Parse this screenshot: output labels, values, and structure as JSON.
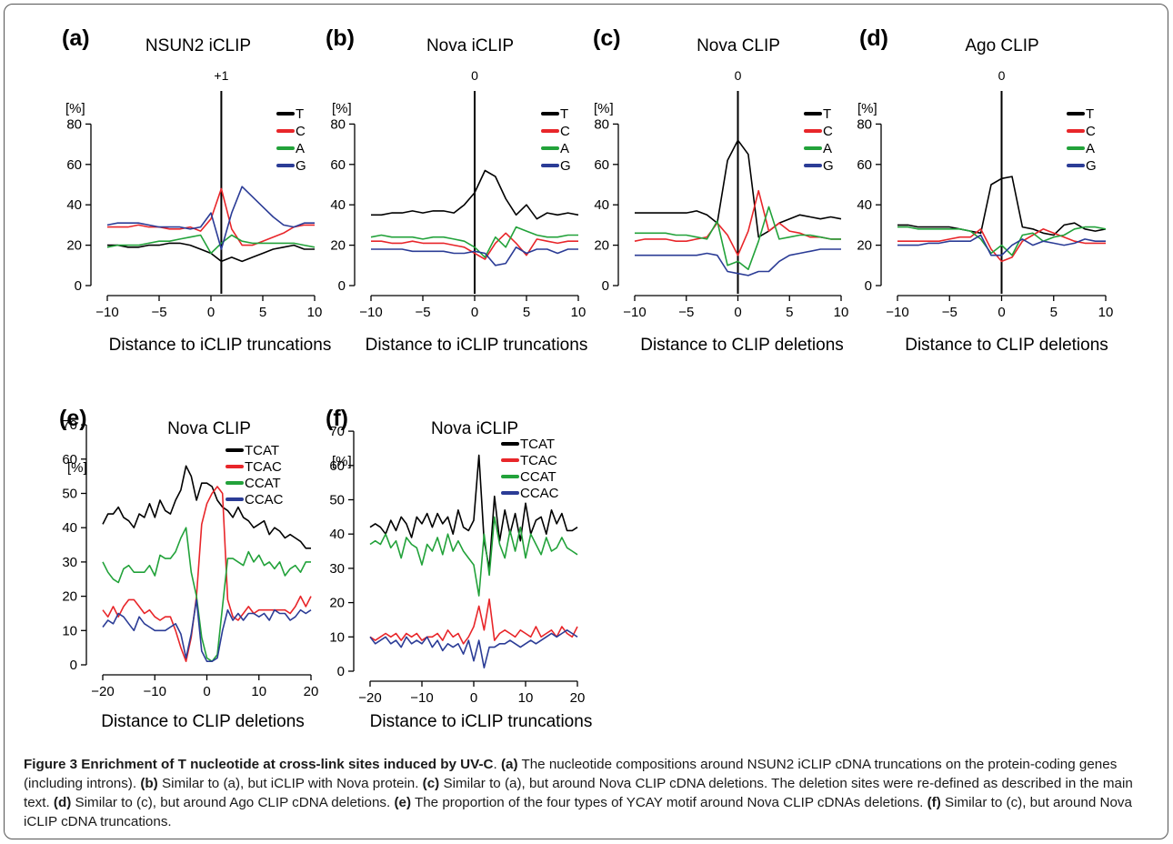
{
  "colors": {
    "T": "#000000",
    "C": "#e8262a",
    "A": "#22a23a",
    "G": "#2b3c96"
  },
  "caption": {
    "title": "Figure 3 Enrichment of T nucleotide at cross-link sites induced by UV-C",
    "title_end": ". ",
    "parts": [
      {
        "ref": "(a)",
        "text": " The nucleotide compositions around NSUN2 iCLIP cDNA truncations on the protein-coding genes (including introns). "
      },
      {
        "ref": "(b)",
        "text": " Similar to (a), but iCLIP with Nova protein. "
      },
      {
        "ref": "(c)",
        "text": " Similar to (a), but around Nova CLIP cDNA deletions. The deletion sites were re-defined as described in the main text. "
      },
      {
        "ref": "(d)",
        "text": " Similar to (c), but around Ago CLIP cDNA deletions. "
      },
      {
        "ref": "(e)",
        "text": " The proportion of the four types of YCAY motif around Nova CLIP cDNAs deletions. "
      },
      {
        "ref": "(f)",
        "text": " Similar to (c), but around Nova iCLIP cDNA truncations."
      }
    ]
  },
  "chart_data": [
    {
      "panel": "(a)",
      "type": "line",
      "title": "NSUN2 iCLIP",
      "ylabel": "[%]",
      "xlabel": "Distance to iCLIP truncations",
      "vline": 1,
      "vline_label": "+1",
      "ylim": [
        0,
        90
      ],
      "yticks": [
        0,
        20,
        40,
        60,
        80
      ],
      "xlim": [
        -10,
        10
      ],
      "xticks": [
        -10,
        -5,
        0,
        5,
        10
      ],
      "x": [
        -10,
        -9,
        -8,
        -7,
        -6,
        -5,
        -4,
        -3,
        -2,
        -1,
        0,
        1,
        2,
        3,
        4,
        5,
        6,
        7,
        8,
        9,
        10
      ],
      "series": [
        {
          "name": "T",
          "values": [
            20,
            20,
            19,
            19,
            20,
            20,
            21,
            21,
            20,
            18,
            16,
            12,
            14,
            12,
            14,
            16,
            18,
            19,
            20,
            18,
            18
          ]
        },
        {
          "name": "C",
          "values": [
            29,
            29,
            29,
            30,
            29,
            29,
            28,
            28,
            29,
            27,
            33,
            48,
            28,
            20,
            20,
            22,
            24,
            26,
            29,
            30,
            30
          ]
        },
        {
          "name": "A",
          "values": [
            19,
            20,
            20,
            20,
            21,
            22,
            22,
            23,
            24,
            25,
            16,
            21,
            25,
            22,
            21,
            21,
            21,
            21,
            21,
            20,
            19
          ]
        },
        {
          "name": "G",
          "values": [
            30,
            31,
            31,
            31,
            30,
            29,
            29,
            29,
            28,
            29,
            36,
            18,
            36,
            49,
            44,
            39,
            34,
            30,
            29,
            31,
            31
          ]
        }
      ]
    },
    {
      "panel": "(b)",
      "type": "line",
      "title": "Nova iCLIP",
      "ylabel": "[%]",
      "xlabel": "Distance to iCLIP truncations",
      "vline": 0,
      "vline_label": "0",
      "ylim": [
        0,
        90
      ],
      "yticks": [
        0,
        20,
        40,
        60,
        80
      ],
      "xlim": [
        -10,
        10
      ],
      "xticks": [
        -10,
        -5,
        0,
        5,
        10
      ],
      "x": [
        -10,
        -9,
        -8,
        -7,
        -6,
        -5,
        -4,
        -3,
        -2,
        -1,
        0,
        1,
        2,
        3,
        4,
        5,
        6,
        7,
        8,
        9,
        10
      ],
      "series": [
        {
          "name": "T",
          "values": [
            35,
            35,
            36,
            36,
            37,
            36,
            37,
            37,
            36,
            40,
            46,
            57,
            54,
            43,
            35,
            40,
            33,
            36,
            35,
            36,
            35
          ]
        },
        {
          "name": "C",
          "values": [
            22,
            22,
            21,
            21,
            22,
            21,
            21,
            21,
            20,
            19,
            16,
            13,
            21,
            26,
            21,
            15,
            23,
            22,
            21,
            22,
            22
          ]
        },
        {
          "name": "A",
          "values": [
            24,
            25,
            24,
            24,
            24,
            23,
            24,
            24,
            23,
            22,
            19,
            14,
            24,
            19,
            29,
            27,
            25,
            24,
            24,
            25,
            25
          ]
        },
        {
          "name": "G",
          "values": [
            18,
            18,
            18,
            18,
            17,
            17,
            17,
            17,
            16,
            16,
            17,
            16,
            10,
            11,
            19,
            16,
            18,
            18,
            16,
            18,
            18
          ]
        }
      ]
    },
    {
      "panel": "(c)",
      "type": "line",
      "title": "Nova CLIP",
      "ylabel": "[%]",
      "xlabel": "Distance to CLIP deletions",
      "vline": 0,
      "vline_label": "0",
      "ylim": [
        0,
        90
      ],
      "yticks": [
        0,
        20,
        40,
        60,
        80
      ],
      "xlim": [
        -10,
        10
      ],
      "xticks": [
        -10,
        -5,
        0,
        5,
        10
      ],
      "x": [
        -10,
        -9,
        -8,
        -7,
        -6,
        -5,
        -4,
        -3,
        -2,
        -1,
        0,
        1,
        2,
        3,
        4,
        5,
        6,
        7,
        8,
        9,
        10
      ],
      "series": [
        {
          "name": "T",
          "values": [
            36,
            36,
            36,
            36,
            36,
            36,
            37,
            35,
            31,
            62,
            72,
            65,
            24,
            27,
            31,
            33,
            35,
            34,
            33,
            34,
            33
          ]
        },
        {
          "name": "C",
          "values": [
            22,
            23,
            23,
            23,
            22,
            22,
            23,
            24,
            31,
            25,
            15,
            27,
            47,
            27,
            31,
            27,
            26,
            24,
            24,
            23,
            23
          ]
        },
        {
          "name": "A",
          "values": [
            26,
            26,
            26,
            26,
            25,
            25,
            24,
            23,
            32,
            10,
            12,
            8,
            22,
            39,
            23,
            24,
            25,
            25,
            24,
            23,
            23
          ]
        },
        {
          "name": "G",
          "values": [
            15,
            15,
            15,
            15,
            15,
            15,
            15,
            16,
            15,
            7,
            6,
            5,
            7,
            7,
            12,
            15,
            16,
            17,
            18,
            18,
            18
          ]
        }
      ]
    },
    {
      "panel": "(d)",
      "type": "line",
      "title": "Ago CLIP",
      "ylabel": "[%]",
      "xlabel": "Distance to CLIP deletions",
      "vline": 0,
      "vline_label": "0",
      "ylim": [
        0,
        90
      ],
      "yticks": [
        0,
        20,
        40,
        60,
        80
      ],
      "xlim": [
        -10,
        10
      ],
      "xticks": [
        -10,
        -5,
        0,
        5,
        10
      ],
      "x": [
        -10,
        -9,
        -8,
        -7,
        -6,
        -5,
        -4,
        -3,
        -2,
        -1,
        0,
        1,
        2,
        3,
        4,
        5,
        6,
        7,
        8,
        9,
        10
      ],
      "series": [
        {
          "name": "T",
          "values": [
            30,
            30,
            29,
            29,
            29,
            29,
            28,
            27,
            26,
            50,
            53,
            54,
            29,
            28,
            26,
            25,
            30,
            31,
            28,
            27,
            28
          ]
        },
        {
          "name": "C",
          "values": [
            22,
            22,
            22,
            22,
            22,
            23,
            24,
            24,
            28,
            18,
            12,
            14,
            22,
            25,
            28,
            26,
            24,
            22,
            21,
            21,
            21
          ]
        },
        {
          "name": "A",
          "values": [
            29,
            29,
            28,
            28,
            28,
            28,
            28,
            27,
            23,
            16,
            20,
            15,
            25,
            26,
            22,
            24,
            25,
            28,
            29,
            29,
            28
          ]
        },
        {
          "name": "G",
          "values": [
            20,
            20,
            20,
            21,
            21,
            22,
            22,
            22,
            25,
            15,
            15,
            20,
            23,
            20,
            22,
            21,
            20,
            21,
            23,
            22,
            22
          ]
        }
      ]
    },
    {
      "panel": "(e)",
      "type": "line",
      "title": "Nova CLIP",
      "ylabel": "[%]",
      "xlabel": "Distance to CLIP deletions",
      "ylim": [
        0,
        70
      ],
      "yticks": [
        0,
        10,
        20,
        30,
        40,
        50,
        60,
        70
      ],
      "xlim": [
        -20,
        20
      ],
      "xticks": [
        -20,
        -10,
        0,
        10,
        20
      ],
      "x": [
        -20,
        -19,
        -18,
        -17,
        -16,
        -15,
        -14,
        -13,
        -12,
        -11,
        -10,
        -9,
        -8,
        -7,
        -6,
        -5,
        -4,
        -3,
        -2,
        -1,
        0,
        1,
        2,
        3,
        4,
        5,
        6,
        7,
        8,
        9,
        10,
        11,
        12,
        13,
        14,
        15,
        16,
        17,
        18,
        19,
        20
      ],
      "series": [
        {
          "name": "TCAT",
          "values": [
            41,
            44,
            44,
            46,
            43,
            42,
            40,
            44,
            43,
            47,
            43,
            48,
            45,
            44,
            48,
            51,
            58,
            55,
            48,
            53,
            53,
            52,
            48,
            46,
            45,
            43,
            46,
            43,
            42,
            40,
            41,
            42,
            38,
            40,
            39,
            37,
            38,
            37,
            36,
            34,
            34
          ]
        },
        {
          "name": "TCAC",
          "values": [
            16,
            14,
            17,
            14,
            17,
            19,
            19,
            17,
            15,
            16,
            14,
            13,
            14,
            14,
            10,
            5,
            1,
            8,
            20,
            41,
            47,
            50,
            52,
            50,
            19,
            14,
            13,
            15,
            17,
            15,
            16,
            16,
            16,
            16,
            16,
            16,
            15,
            17,
            20,
            17,
            20
          ]
        },
        {
          "name": "CCAT",
          "values": [
            30,
            27,
            25,
            24,
            28,
            29,
            27,
            27,
            27,
            29,
            26,
            32,
            31,
            31,
            33,
            37,
            40,
            27,
            20,
            8,
            2,
            1,
            3,
            17,
            31,
            31,
            30,
            29,
            33,
            30,
            32,
            29,
            30,
            28,
            30,
            26,
            28,
            29,
            27,
            30,
            30
          ]
        },
        {
          "name": "CCAC",
          "values": [
            11,
            13,
            12,
            15,
            14,
            12,
            10,
            14,
            12,
            11,
            10,
            10,
            10,
            11,
            12,
            9,
            2,
            9,
            19,
            4,
            1,
            1,
            2,
            10,
            16,
            13,
            15,
            13,
            15,
            15,
            14,
            15,
            13,
            16,
            15,
            15,
            13,
            14,
            16,
            15,
            16
          ]
        }
      ]
    },
    {
      "panel": "(f)",
      "type": "line",
      "title": "Nova iCLIP",
      "ylabel": "[%]",
      "xlabel": "Distance to iCLIP truncations",
      "ylim": [
        0,
        70
      ],
      "yticks": [
        0,
        10,
        20,
        30,
        40,
        50,
        60,
        70
      ],
      "xlim": [
        -20,
        20
      ],
      "xticks": [
        -20,
        -10,
        0,
        10,
        20
      ],
      "x": [
        -20,
        -19,
        -18,
        -17,
        -16,
        -15,
        -14,
        -13,
        -12,
        -11,
        -10,
        -9,
        -8,
        -7,
        -6,
        -5,
        -4,
        -3,
        -2,
        -1,
        0,
        1,
        2,
        3,
        4,
        5,
        6,
        7,
        8,
        9,
        10,
        11,
        12,
        13,
        14,
        15,
        16,
        17,
        18,
        19,
        20
      ],
      "series": [
        {
          "name": "TCAT",
          "values": [
            42,
            43,
            42,
            40,
            44,
            41,
            45,
            43,
            39,
            45,
            43,
            46,
            42,
            46,
            43,
            45,
            40,
            47,
            42,
            41,
            44,
            63,
            38,
            30,
            51,
            38,
            47,
            40,
            46,
            38,
            49,
            40,
            44,
            45,
            40,
            47,
            43,
            46,
            41,
            41,
            42
          ]
        },
        {
          "name": "TCAC",
          "values": [
            10,
            9,
            10,
            11,
            10,
            11,
            9,
            11,
            10,
            11,
            9,
            10,
            10,
            11,
            9,
            12,
            10,
            11,
            8,
            10,
            13,
            19,
            12,
            21,
            9,
            11,
            12,
            11,
            10,
            12,
            11,
            10,
            13,
            10,
            11,
            12,
            10,
            13,
            11,
            10,
            13
          ]
        },
        {
          "name": "CCAT",
          "values": [
            37,
            38,
            37,
            40,
            36,
            38,
            33,
            39,
            37,
            36,
            31,
            37,
            35,
            39,
            34,
            40,
            35,
            38,
            35,
            33,
            31,
            22,
            40,
            28,
            45,
            37,
            33,
            41,
            35,
            42,
            33,
            40,
            37,
            34,
            39,
            35,
            36,
            39,
            36,
            35,
            34
          ]
        },
        {
          "name": "CCAC",
          "values": [
            10,
            8,
            9,
            10,
            8,
            9,
            7,
            10,
            8,
            9,
            8,
            10,
            7,
            9,
            6,
            8,
            7,
            8,
            5,
            9,
            3,
            9,
            1,
            7,
            7,
            8,
            8,
            9,
            8,
            7,
            8,
            9,
            8,
            9,
            10,
            11,
            10,
            11,
            12,
            11,
            10
          ]
        }
      ]
    }
  ]
}
